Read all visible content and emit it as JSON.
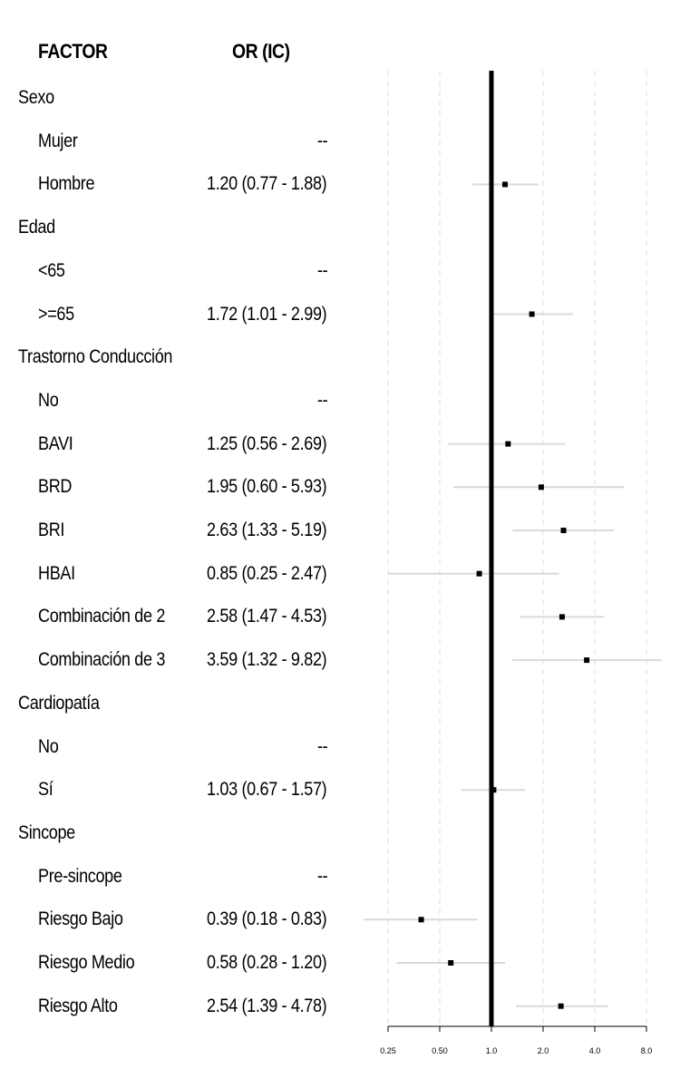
{
  "headers": {
    "factor": "FACTOR",
    "or": "OR (IC)"
  },
  "chart_data": {
    "type": "forest",
    "xscale": "log2",
    "xlim": [
      0.25,
      8.0
    ],
    "xticks": [
      "0.25",
      "0.50",
      "1.0",
      "2.0",
      "4.0",
      "8.0"
    ],
    "xtick_values": [
      0.25,
      0.5,
      1.0,
      2.0,
      4.0,
      8.0
    ],
    "reference_line": 1.0,
    "grid": "dashed vertical at ticks",
    "colors": {
      "ci": "#d9d9d9",
      "point": "#000000",
      "reference": "#000000",
      "grid": "#dddddd"
    },
    "rows": [
      {
        "label": "Sexo",
        "group": true
      },
      {
        "label": "Mujer",
        "or_text": "--",
        "reference": true
      },
      {
        "label": "Hombre",
        "or_text": "1.20 (0.77 - 1.88)",
        "or": 1.2,
        "lo": 0.77,
        "hi": 1.88
      },
      {
        "label": "Edad",
        "group": true
      },
      {
        "label": "<65",
        "or_text": "--",
        "reference": true
      },
      {
        "label": ">=65",
        "or_text": "1.72 (1.01 - 2.99)",
        "or": 1.72,
        "lo": 1.01,
        "hi": 2.99
      },
      {
        "label": "Trastorno Conducción",
        "group": true
      },
      {
        "label": "No",
        "or_text": "--",
        "reference": true
      },
      {
        "label": "BAVI",
        "or_text": "1.25 (0.56 - 2.69)",
        "or": 1.25,
        "lo": 0.56,
        "hi": 2.69
      },
      {
        "label": "BRD",
        "or_text": "1.95 (0.60 - 5.93)",
        "or": 1.95,
        "lo": 0.6,
        "hi": 5.93
      },
      {
        "label": "BRI",
        "or_text": "2.63 (1.33 - 5.19)",
        "or": 2.63,
        "lo": 1.33,
        "hi": 5.19
      },
      {
        "label": "HBAI",
        "or_text": "0.85 (0.25 - 2.47)",
        "or": 0.85,
        "lo": 0.25,
        "hi": 2.47
      },
      {
        "label": "Combinación de 2",
        "or_text": "2.58 (1.47 - 4.53)",
        "or": 2.58,
        "lo": 1.47,
        "hi": 4.53
      },
      {
        "label": "Combinación de 3",
        "or_text": "3.59 (1.32 - 9.82)",
        "or": 3.59,
        "lo": 1.32,
        "hi": 9.82
      },
      {
        "label": "Cardiopatía",
        "group": true
      },
      {
        "label": "No",
        "or_text": "--",
        "reference": true
      },
      {
        "label": "Sí",
        "or_text": "1.03 (0.67 - 1.57)",
        "or": 1.03,
        "lo": 0.67,
        "hi": 1.57
      },
      {
        "label": "Sincope",
        "group": true
      },
      {
        "label": "Pre-sincope",
        "or_text": "--",
        "reference": true
      },
      {
        "label": "Riesgo Bajo",
        "or_text": "0.39 (0.18 - 0.83)",
        "or": 0.39,
        "lo": 0.18,
        "hi": 0.83
      },
      {
        "label": "Riesgo Medio",
        "or_text": "0.58 (0.28 - 1.20)",
        "or": 0.58,
        "lo": 0.28,
        "hi": 1.2
      },
      {
        "label": "Riesgo Alto",
        "or_text": "2.54 (1.39 - 4.78)",
        "or": 2.54,
        "lo": 1.39,
        "hi": 4.78
      }
    ]
  }
}
